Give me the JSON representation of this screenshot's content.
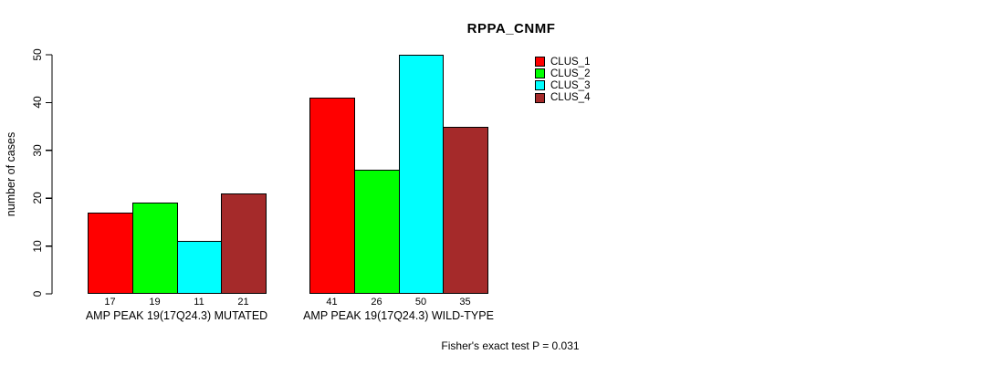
{
  "chart_data": {
    "type": "bar",
    "title": "RPPA_CNMF",
    "ylabel": "number of cases",
    "ylim": [
      0,
      50
    ],
    "yticks": [
      0,
      10,
      20,
      30,
      40,
      50
    ],
    "grid": false,
    "legend_position": "top-right",
    "categories": [
      "AMP PEAK 19(17Q24.3) MUTATED",
      "AMP PEAK 19(17Q24.3) WILD-TYPE"
    ],
    "series": [
      {
        "name": "CLUS_1",
        "color": "#FF0000",
        "values": [
          17,
          41
        ]
      },
      {
        "name": "CLUS_2",
        "color": "#00FF00",
        "values": [
          19,
          26
        ]
      },
      {
        "name": "CLUS_3",
        "color": "#00FFFF",
        "values": [
          11,
          50
        ]
      },
      {
        "name": "CLUS_4",
        "color": "#A52A2A",
        "values": [
          21,
          35
        ]
      }
    ],
    "bar_value_labels": [
      [
        17,
        19,
        11,
        21
      ],
      [
        41,
        26,
        50,
        35
      ]
    ],
    "footnote": "Fisher's exact test P = 0.031",
    "axis_color": "#000000",
    "background_color": "#FFFFFF"
  }
}
